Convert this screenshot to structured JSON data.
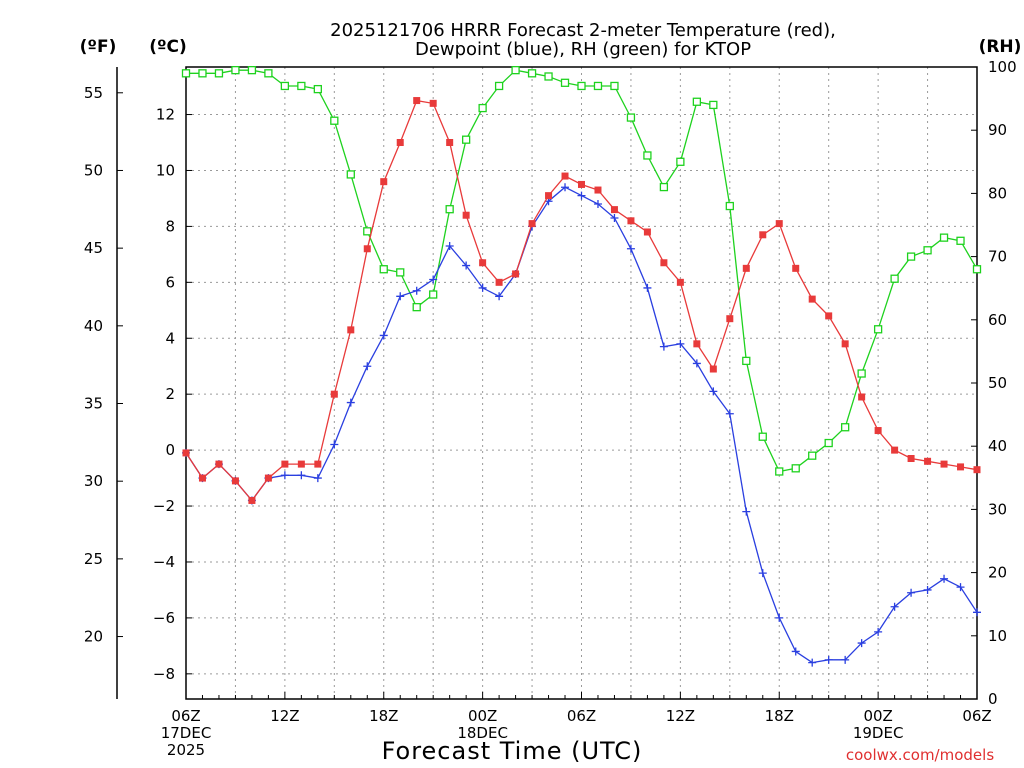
{
  "chart_data": {
    "type": "line",
    "title_line1": "2025121706 HRRR Forecast 2-meter Temperature (red),",
    "title_line2": "Dewpoint (blue), RH (green) for KTOP",
    "xlabel": "Forecast Time (UTC)",
    "credit": "coolwx.com/models",
    "units": {
      "fahrenheit": "(ºF)",
      "celsius": "(ºC)",
      "rh": "(RH)"
    },
    "y_celsius": {
      "ylim": [
        -8.9,
        13.7
      ],
      "ticks": [
        -8,
        -6,
        -4,
        -2,
        0,
        2,
        4,
        6,
        8,
        10,
        12
      ],
      "tick_labels": [
        "−8",
        "−6",
        "−4",
        "−2",
        "0",
        "2",
        "4",
        "6",
        "8",
        "10",
        "12"
      ]
    },
    "y_fahrenheit": {
      "ticks": [
        20,
        25,
        30,
        35,
        40,
        45,
        50,
        55
      ],
      "tick_labels": [
        "20",
        "25",
        "30",
        "35",
        "40",
        "45",
        "50",
        "55"
      ]
    },
    "y_rh": {
      "ylim": [
        0,
        100
      ],
      "ticks": [
        0,
        10,
        20,
        30,
        40,
        50,
        60,
        70,
        80,
        90,
        100
      ],
      "tick_labels": [
        "0",
        "10",
        "20",
        "30",
        "40",
        "50",
        "60",
        "70",
        "80",
        "90",
        "100"
      ]
    },
    "x_hours": [
      0,
      1,
      2,
      3,
      4,
      5,
      6,
      7,
      8,
      9,
      10,
      11,
      12,
      13,
      14,
      15,
      16,
      17,
      18,
      19,
      20,
      21,
      22,
      23,
      24,
      25,
      26,
      27,
      28,
      29,
      30,
      31,
      32,
      33,
      34,
      35,
      36,
      37,
      38,
      39,
      40,
      41,
      42,
      43,
      44,
      45,
      46,
      47,
      48
    ],
    "x_ticks": [
      {
        "hour": 0,
        "labels": [
          "06Z",
          "17DEC",
          "2025"
        ]
      },
      {
        "hour": 6,
        "labels": [
          "12Z"
        ]
      },
      {
        "hour": 12,
        "labels": [
          "18Z"
        ]
      },
      {
        "hour": 18,
        "labels": [
          "00Z",
          "18DEC"
        ]
      },
      {
        "hour": 24,
        "labels": [
          "06Z"
        ]
      },
      {
        "hour": 30,
        "labels": [
          "12Z"
        ]
      },
      {
        "hour": 36,
        "labels": [
          "18Z"
        ]
      },
      {
        "hour": 42,
        "labels": [
          "00Z",
          "19DEC"
        ]
      },
      {
        "hour": 48,
        "labels": [
          "06Z"
        ]
      }
    ],
    "series": [
      {
        "name": "Temperature",
        "unit": "C",
        "color": "#e83a3a",
        "marker": "filled-square",
        "values": [
          -0.1,
          -1.0,
          -0.5,
          -1.1,
          -1.8,
          -1.0,
          -0.5,
          -0.5,
          -0.5,
          2.0,
          4.3,
          7.2,
          9.6,
          11.0,
          12.5,
          12.4,
          11.0,
          8.4,
          6.7,
          6.0,
          6.3,
          8.1,
          9.1,
          9.8,
          9.5,
          9.3,
          8.6,
          8.2,
          7.8,
          6.7,
          6.0,
          3.8,
          2.9,
          4.7,
          6.5,
          7.7,
          8.1,
          6.5,
          5.4,
          4.8,
          3.8,
          1.9,
          0.7,
          0.0,
          -0.3,
          -0.4,
          -0.5,
          -0.6,
          -0.7
        ]
      },
      {
        "name": "Dewpoint",
        "unit": "C",
        "color": "#2a3fe0",
        "marker": "plus",
        "values": [
          -0.1,
          -1.0,
          -0.5,
          -1.1,
          -1.8,
          -1.0,
          -0.9,
          -0.9,
          -1.0,
          0.2,
          1.7,
          3.0,
          4.1,
          5.5,
          5.7,
          6.1,
          7.3,
          6.6,
          5.8,
          5.5,
          6.3,
          8.0,
          8.9,
          9.4,
          9.1,
          8.8,
          8.3,
          7.2,
          5.8,
          3.7,
          3.8,
          3.1,
          2.1,
          1.3,
          -2.2,
          -4.4,
          -6.0,
          -7.2,
          -7.6,
          -7.5,
          -7.5,
          -6.9,
          -6.5,
          -5.6,
          -5.1,
          -5.0,
          -4.6,
          -4.9,
          -5.8
        ]
      },
      {
        "name": "RH",
        "unit": "%",
        "color": "#1ed21e",
        "marker": "open-square",
        "values": [
          99,
          99,
          99,
          99.5,
          99.5,
          99,
          97,
          97,
          96.5,
          91.5,
          83,
          74,
          68,
          67.5,
          62,
          64,
          77.5,
          88.5,
          93.5,
          97,
          99.5,
          99,
          98.5,
          97.5,
          97,
          97,
          97,
          92,
          86,
          81,
          85,
          94.5,
          94,
          78,
          53.5,
          41.5,
          36,
          36.5,
          38.5,
          40.5,
          43,
          51.5,
          58.5,
          66.5,
          70,
          71,
          73,
          72.5,
          68
        ]
      }
    ]
  }
}
